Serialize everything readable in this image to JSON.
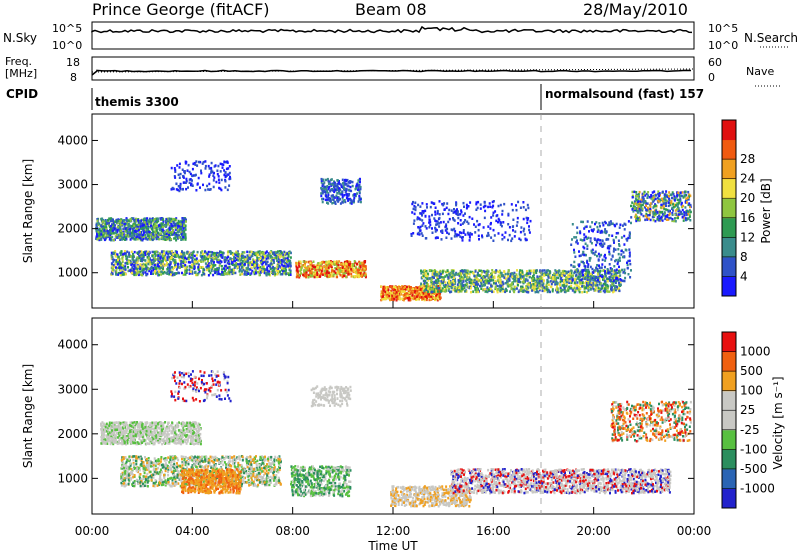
{
  "header": {
    "station": "Prince George (fitACF)",
    "beam": "Beam 08",
    "date": "28/May/2010"
  },
  "top_panel": {
    "left_label_1": "N.Sky",
    "left_ticks_1": [
      "10^5",
      "10^0"
    ],
    "right_label_1": "N.Search",
    "right_ticks_1": [
      "10^5",
      "10^0"
    ],
    "left_label_2a": "Freq.",
    "left_label_2b": "[MHz]",
    "left_ticks_2": [
      "18",
      "8"
    ],
    "right_label_2": "Nave",
    "right_ticks_2": [
      "60",
      "0"
    ],
    "cpid_label": "CPID",
    "cpid_1": "themis 3300",
    "cpid_2": "normalsound (fast) 157"
  },
  "chart_data": [
    {
      "type": "heatmap",
      "name": "power",
      "ylabel": "Slant Range [km]",
      "xlabel": "",
      "ylim": [
        200,
        4600
      ],
      "y_ticks": [
        "1000",
        "2000",
        "3000",
        "4000"
      ],
      "colorbar_label": "Power [dB]",
      "colorbar_ticks": [
        "4",
        "8",
        "12",
        "16",
        "20",
        "24",
        "28"
      ],
      "colorbar_colors": [
        "#1a1aff",
        "#2f52c8",
        "#3a8c8c",
        "#2e9a52",
        "#8fc640",
        "#f0e040",
        "#f0a020",
        "#f05a10",
        "#e01010"
      ],
      "x_ticks_hidden": true
    },
    {
      "type": "heatmap",
      "name": "velocity",
      "ylabel": "Slant Range [km]",
      "xlabel": "Time UT",
      "ylim": [
        200,
        4600
      ],
      "y_ticks": [
        "1000",
        "2000",
        "3000",
        "4000"
      ],
      "x_ticks": [
        "00:00",
        "04:00",
        "08:00",
        "12:00",
        "16:00",
        "20:00",
        "00:00"
      ],
      "colorbar_label": "Velocity [m s⁻¹]",
      "colorbar_ticks": [
        "1000",
        "500",
        "100",
        "25",
        "-25",
        "-100",
        "-500",
        "-1000"
      ],
      "colorbar_colors": [
        "#2222cc",
        "#2a64b4",
        "#2b8e5e",
        "#58c040",
        "#c8c8c4",
        "#c8c8c4",
        "#f0a020",
        "#f06010",
        "#e81010"
      ]
    }
  ]
}
